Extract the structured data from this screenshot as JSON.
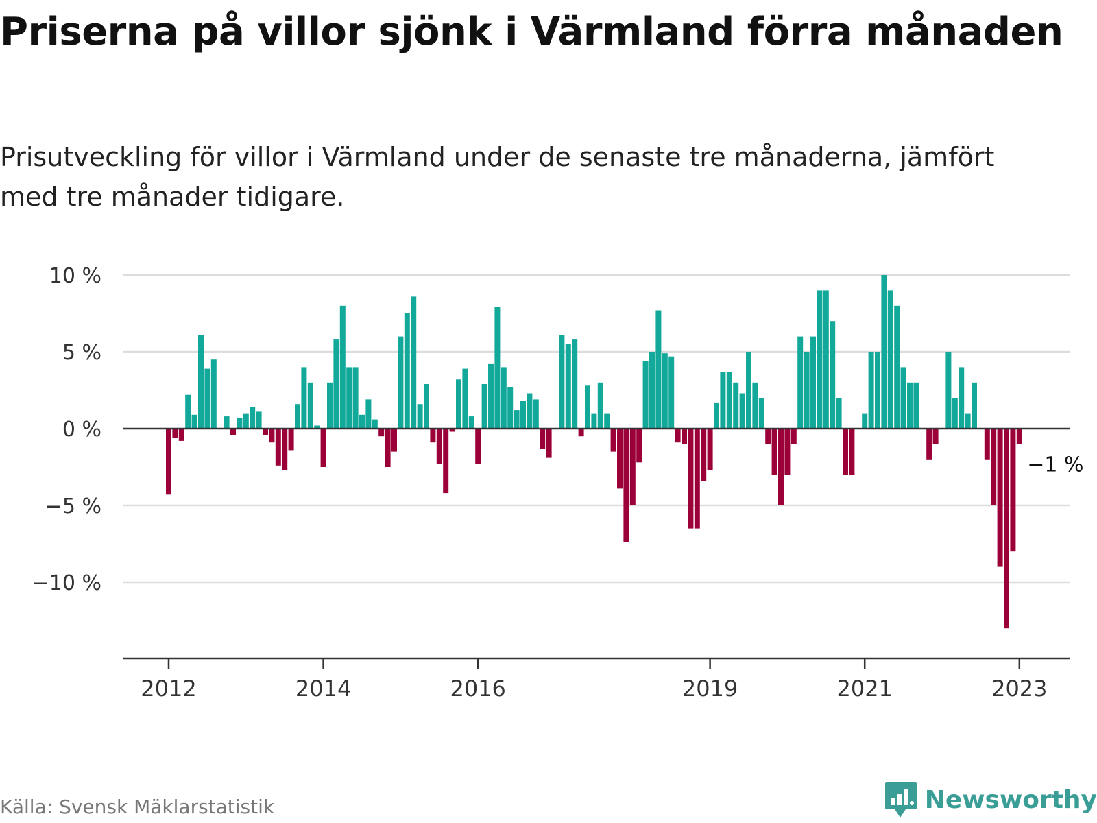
{
  "title": "Priserna på villor sjönk i Värmland förra månaden",
  "subtitle": "Prisutveckling för villor i Värmland under de senaste tre månaderna, jämfört med tre månader tidigare.",
  "source": "Källa: Svensk Mäklarstatistik",
  "brand": "Newsworthy",
  "colors": {
    "positive": "#12a89a",
    "negative": "#9c0039",
    "grid": "#dddddd",
    "axis": "#333333",
    "brand": "#3a9e97"
  },
  "chart_data": {
    "type": "bar",
    "ylabel": "",
    "xlabel": "",
    "ylim": [
      -15,
      10
    ],
    "grid": true,
    "yticks": [
      10,
      5,
      0,
      -5,
      -10
    ],
    "ytick_labels": [
      "10 %",
      "5 %",
      "0 %",
      "−5 %",
      "−10 %"
    ],
    "xtick_labels": [
      "2012",
      "2014",
      "2016",
      "2019",
      "2021",
      "2023"
    ],
    "xtick_positions": [
      "2012-01",
      "2014-01",
      "2016-01",
      "2019-01",
      "2021-01",
      "2023-01"
    ],
    "annotation": {
      "text": "−1 %",
      "date": "2023-02",
      "value": -1
    },
    "x": [
      "2012-01",
      "2012-02",
      "2012-03",
      "2012-04",
      "2012-05",
      "2012-06",
      "2012-07",
      "2012-08",
      "2012-09",
      "2012-10",
      "2012-11",
      "2012-12",
      "2013-01",
      "2013-02",
      "2013-03",
      "2013-04",
      "2013-05",
      "2013-06",
      "2013-07",
      "2013-08",
      "2013-09",
      "2013-10",
      "2013-11",
      "2013-12",
      "2014-01",
      "2014-02",
      "2014-03",
      "2014-04",
      "2014-05",
      "2014-06",
      "2014-07",
      "2014-08",
      "2014-09",
      "2014-10",
      "2014-11",
      "2014-12",
      "2015-01",
      "2015-02",
      "2015-03",
      "2015-04",
      "2015-05",
      "2015-06",
      "2015-07",
      "2015-08",
      "2015-09",
      "2015-10",
      "2015-11",
      "2015-12",
      "2016-01",
      "2016-02",
      "2016-03",
      "2016-04",
      "2016-05",
      "2016-06",
      "2016-07",
      "2016-08",
      "2016-09",
      "2016-10",
      "2016-11",
      "2016-12",
      "2017-01",
      "2017-02",
      "2017-03",
      "2017-04",
      "2017-05",
      "2017-06",
      "2017-07",
      "2017-08",
      "2017-09",
      "2017-10",
      "2017-11",
      "2017-12",
      "2018-01",
      "2018-02",
      "2018-03",
      "2018-04",
      "2018-05",
      "2018-06",
      "2018-07",
      "2018-08",
      "2018-09",
      "2018-10",
      "2018-11",
      "2018-12",
      "2019-01",
      "2019-02",
      "2019-03",
      "2019-04",
      "2019-05",
      "2019-06",
      "2019-07",
      "2019-08",
      "2019-09",
      "2019-10",
      "2019-11",
      "2019-12",
      "2020-01",
      "2020-02",
      "2020-03",
      "2020-04",
      "2020-05",
      "2020-06",
      "2020-07",
      "2020-08",
      "2020-09",
      "2020-10",
      "2020-11",
      "2020-12",
      "2021-01",
      "2021-02",
      "2021-03",
      "2021-04",
      "2021-05",
      "2021-06",
      "2021-07",
      "2021-08",
      "2021-09",
      "2021-10",
      "2021-11",
      "2021-12",
      "2022-01",
      "2022-02",
      "2022-03",
      "2022-04",
      "2022-05",
      "2022-06",
      "2022-07",
      "2022-08",
      "2022-09",
      "2022-10",
      "2022-11",
      "2022-12",
      "2023-01",
      "2023-02"
    ],
    "values": [
      -4.3,
      -0.6,
      -0.8,
      2.2,
      0.9,
      6.1,
      3.9,
      4.5,
      null,
      0.8,
      -0.4,
      0.7,
      1.0,
      1.4,
      1.1,
      -0.4,
      -0.9,
      -2.4,
      -2.7,
      -1.4,
      1.6,
      4.0,
      3.0,
      0.2,
      -2.5,
      3.0,
      5.8,
      8.0,
      4.0,
      4.0,
      0.9,
      1.9,
      0.6,
      -0.5,
      -2.5,
      -1.5,
      6.0,
      7.5,
      8.6,
      1.6,
      2.9,
      -0.9,
      -2.3,
      -4.2,
      -0.2,
      3.2,
      3.9,
      0.8,
      -2.3,
      2.9,
      4.2,
      7.9,
      4.0,
      2.7,
      1.2,
      1.8,
      2.3,
      1.9,
      -1.3,
      -1.9,
      null,
      6.1,
      5.5,
      5.8,
      -0.5,
      2.8,
      1.0,
      3.0,
      1.0,
      -1.5,
      -3.9,
      -7.4,
      -5.0,
      -2.2,
      4.4,
      5.0,
      7.7,
      4.9,
      4.7,
      -0.9,
      -1.0,
      -6.5,
      -6.5,
      -3.4,
      -2.7,
      1.7,
      3.7,
      3.7,
      3.0,
      2.3,
      5.0,
      3.0,
      2.0,
      -1.0,
      -3.0,
      -5.0,
      -3.0,
      -1.0,
      6.0,
      5.0,
      6.0,
      9.0,
      9.0,
      7.0,
      2.0,
      -3.0,
      -3.0,
      null,
      1.0,
      5.0,
      5.0,
      10.0,
      9.0,
      8.0,
      4.0,
      3.0,
      3.0,
      null,
      -2.0,
      -1.0,
      null,
      5.0,
      2.0,
      4.0,
      1.0,
      3.0,
      null,
      -2.0,
      -5.0,
      -9.0,
      -13.0,
      -8.0,
      -1.0,
      null
    ]
  }
}
